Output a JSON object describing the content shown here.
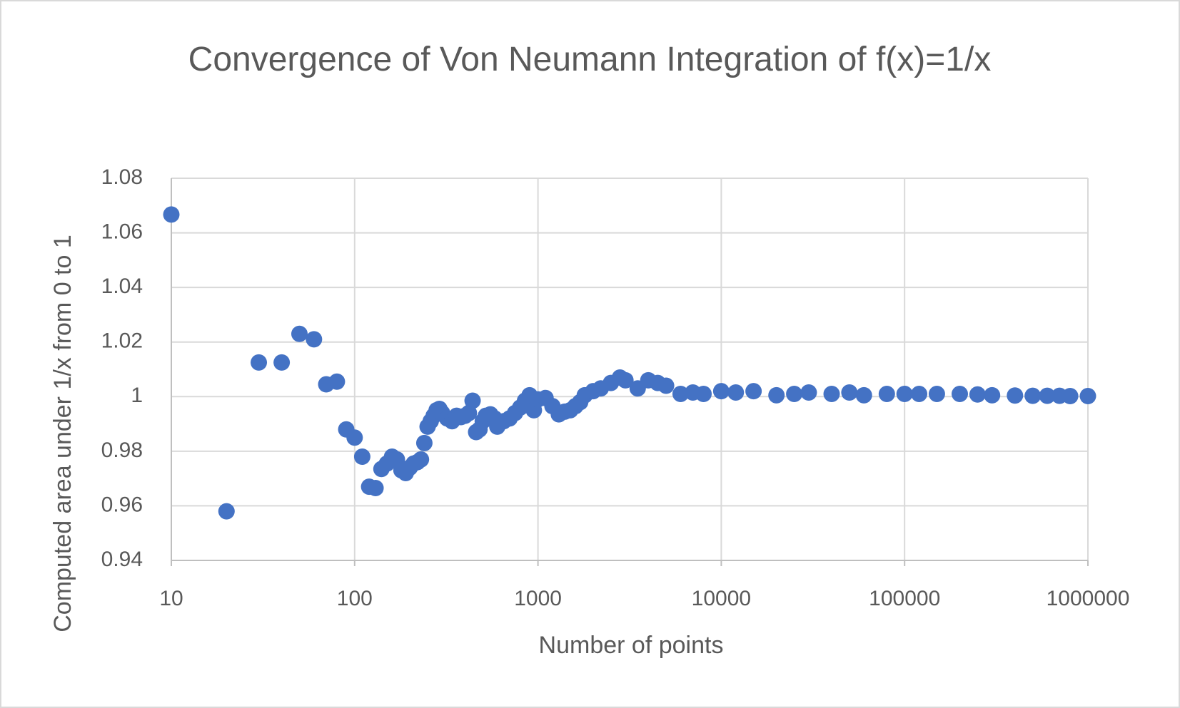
{
  "chart_data": {
    "type": "scatter",
    "title": "Convergence of Von Neumann Integration of f(x)=1/x",
    "x_label": "Number of points",
    "y_label": "Computed area under 1/x from 0 to 1",
    "x": [
      10,
      20,
      30,
      40,
      50,
      60,
      70,
      80,
      90,
      100,
      110,
      120,
      130,
      140,
      150,
      160,
      170,
      180,
      190,
      200,
      210,
      220,
      230,
      240,
      250,
      260,
      270,
      280,
      290,
      300,
      320,
      340,
      360,
      380,
      400,
      420,
      440,
      460,
      480,
      500,
      520,
      550,
      580,
      600,
      650,
      700,
      750,
      800,
      850,
      900,
      950,
      1000,
      1100,
      1200,
      1300,
      1400,
      1500,
      1600,
      1700,
      1800,
      2000,
      2200,
      2500,
      2800,
      3000,
      3500,
      4000,
      4500,
      5000,
      6000,
      7000,
      8000,
      10000,
      12000,
      15000,
      20000,
      25000,
      30000,
      40000,
      50000,
      60000,
      80000,
      100000,
      120000,
      150000,
      200000,
      250000,
      300000,
      400000,
      500000,
      600000,
      700000,
      800000,
      1000000
    ],
    "series": [
      {
        "name": "Computed area",
        "color": "#4472c4",
        "values": [
          1.0667,
          0.958,
          1.0125,
          1.0125,
          1.023,
          1.021,
          1.0045,
          1.0055,
          0.988,
          0.985,
          0.978,
          0.967,
          0.9665,
          0.9735,
          0.9755,
          0.978,
          0.977,
          0.973,
          0.972,
          0.974,
          0.9755,
          0.976,
          0.977,
          0.983,
          0.989,
          0.991,
          0.993,
          0.995,
          0.9955,
          0.994,
          0.992,
          0.991,
          0.993,
          0.9925,
          0.993,
          0.994,
          0.9985,
          0.987,
          0.988,
          0.991,
          0.993,
          0.9935,
          0.992,
          0.989,
          0.991,
          0.992,
          0.994,
          0.996,
          0.9985,
          1.0005,
          0.995,
          0.999,
          0.9995,
          0.9965,
          0.9935,
          0.9945,
          0.995,
          0.9965,
          0.998,
          1.0005,
          1.002,
          1.003,
          1.005,
          1.007,
          1.006,
          1.003,
          1.006,
          1.005,
          1.004,
          1.001,
          1.0015,
          1.001,
          1.002,
          1.0015,
          1.002,
          1.0005,
          1.001,
          1.0015,
          1.001,
          1.0015,
          1.0005,
          1.001,
          1.001,
          1.001,
          1.001,
          1.001,
          1.0008,
          1.0005,
          1.0004,
          1.0003,
          1.0003,
          1.0003,
          1.0002,
          1.0002
        ]
      }
    ],
    "xlim": [
      10,
      1000000
    ],
    "xticks": [
      10,
      100,
      1000,
      10000,
      100000,
      1000000
    ],
    "xscale": "log",
    "ylim": [
      0.94,
      1.08
    ],
    "yticks": [
      0.94,
      0.96,
      0.98,
      1,
      1.02,
      1.04,
      1.06,
      1.08
    ],
    "grid": true
  }
}
